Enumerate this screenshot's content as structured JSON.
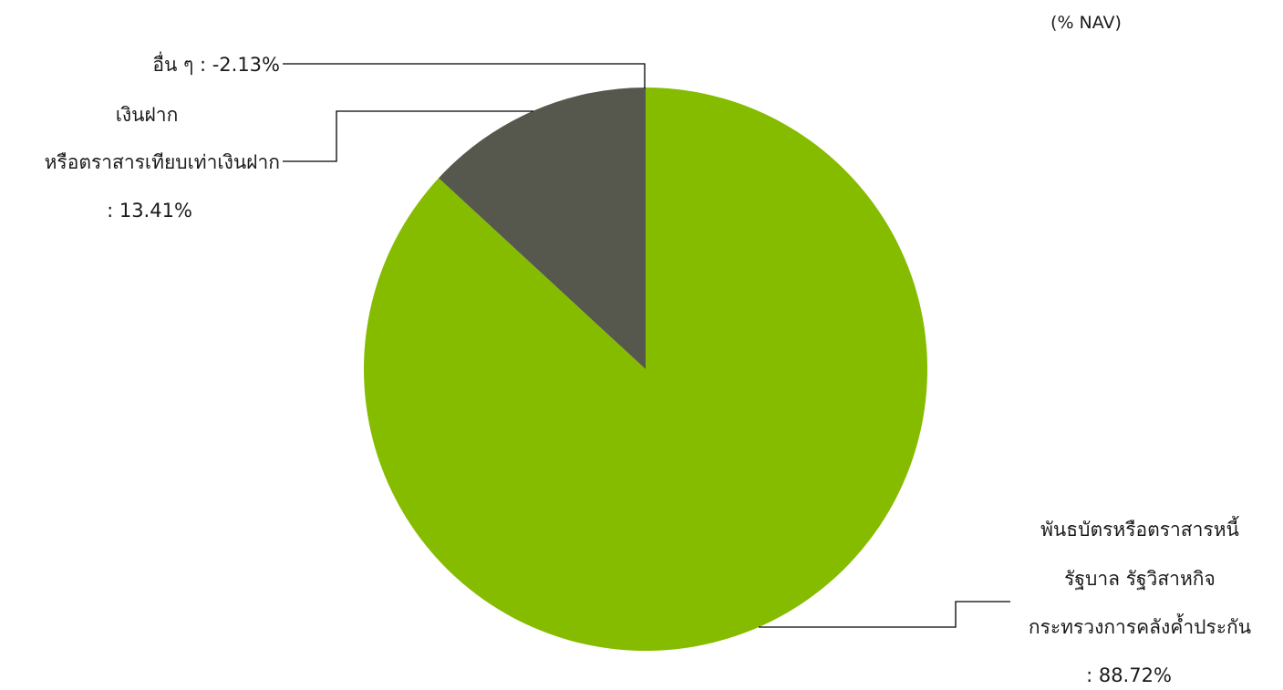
{
  "chart_data": {
    "type": "pie",
    "unit_label": "(% NAV)",
    "slices": [
      {
        "label_lines": [
          "พันธบัตรหรือตราสารหนี้",
          "รัฐบาล รัฐวิสาหกิจ",
          "กระทรวงการคลังค้ำประกัน"
        ],
        "value_text": ": 88.72%",
        "value": 88.72,
        "color": "#86BC00"
      },
      {
        "label_lines": [
          "อื่น ๆ : -2.13%"
        ],
        "value_text": "",
        "value": -2.13,
        "color": "#000000"
      },
      {
        "label_lines": [
          "เงินฝาก",
          "หรือตราสารเทียบเท่าเงินฝาก"
        ],
        "value_text": ": 13.41%",
        "value": 13.41,
        "color": "#56584D"
      }
    ]
  }
}
